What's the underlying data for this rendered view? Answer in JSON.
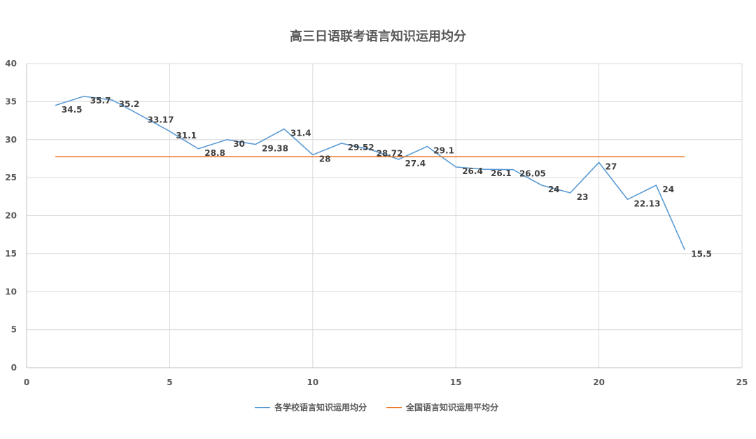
{
  "chart_data": {
    "type": "scatter",
    "title": "高三日语联考语言知识运用均分",
    "xlim": [
      0,
      25
    ],
    "ylim": [
      0,
      40
    ],
    "x_ticks": [
      "0",
      "5",
      "10",
      "15",
      "20",
      "25"
    ],
    "y_ticks": [
      "0",
      "5",
      "10",
      "15",
      "20",
      "25",
      "30",
      "35",
      "40"
    ],
    "grid": true,
    "legend_position": "bottom",
    "series": [
      {
        "name": "各学校语言知识运用均分",
        "color": "#5b9bd5",
        "x": [
          1,
          2,
          3,
          4,
          5,
          6,
          7,
          8,
          9,
          10,
          11,
          12,
          13,
          14,
          15,
          16,
          17,
          18,
          19,
          20,
          21,
          22,
          23
        ],
        "y": [
          34.5,
          35.7,
          35.2,
          33.17,
          31.1,
          28.8,
          30,
          29.38,
          31.4,
          28,
          29.52,
          28.72,
          27.4,
          29.1,
          26.4,
          26.1,
          26.05,
          24,
          23,
          27,
          22.13,
          24,
          15.5
        ],
        "labels": [
          "34.5",
          "35.7",
          "35.2",
          "33.17",
          "31.1",
          "28.8",
          "30",
          "29.38",
          "31.4",
          "28",
          "29.52",
          "28.72",
          "27.4",
          "29.1",
          "26.4",
          "26.1",
          "26.05",
          "24",
          "23",
          "27",
          "22.13",
          "24",
          "15.5"
        ]
      },
      {
        "name": "全国语言知识运用平均分",
        "color": "#ed7d31",
        "x": [
          1,
          23
        ],
        "y": [
          27.75,
          27.75
        ]
      }
    ]
  }
}
